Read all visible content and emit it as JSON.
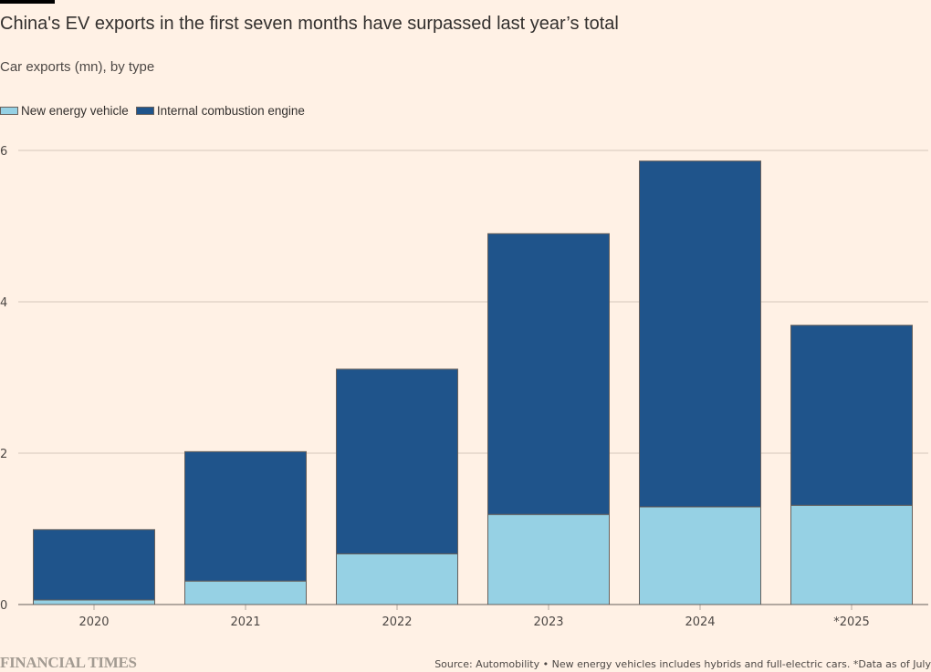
{
  "header": {
    "title": "China's EV exports in the first seven months have surpassed last year’s total",
    "subtitle": "Car exports (mn), by type"
  },
  "legend": [
    {
      "label": "New energy vehicle",
      "color": "#96d1e4"
    },
    {
      "label": "Internal combustion engine",
      "color": "#1f548b"
    }
  ],
  "footer": {
    "brand": "FINANCIAL TIMES",
    "source": "Source: Automobility • New energy vehicles includes hybrids and full-electric cars. *Data as of July"
  },
  "chart_data": {
    "type": "bar",
    "stacked": true,
    "title": "China's EV exports in the first seven months have surpassed last year’s total",
    "subtitle": "Car exports (mn), by type",
    "xlabel": "",
    "ylabel": "Car exports (mn)",
    "categories": [
      "2020",
      "2021",
      "2022",
      "2023",
      "2024",
      "*2025"
    ],
    "series": [
      {
        "name": "New energy vehicle",
        "color": "#96d1e4",
        "values": [
          0.06,
          0.31,
          0.67,
          1.19,
          1.29,
          1.31
        ]
      },
      {
        "name": "Internal combustion engine",
        "color": "#1f548b",
        "values": [
          0.93,
          1.71,
          2.44,
          3.71,
          4.57,
          2.38
        ]
      }
    ],
    "totals": [
      0.99,
      2.02,
      3.11,
      4.9,
      5.86,
      3.69
    ],
    "ylim": [
      0,
      6
    ],
    "yticks": [
      0,
      2,
      4,
      6
    ],
    "grid": true,
    "legend_position": "top-left"
  }
}
